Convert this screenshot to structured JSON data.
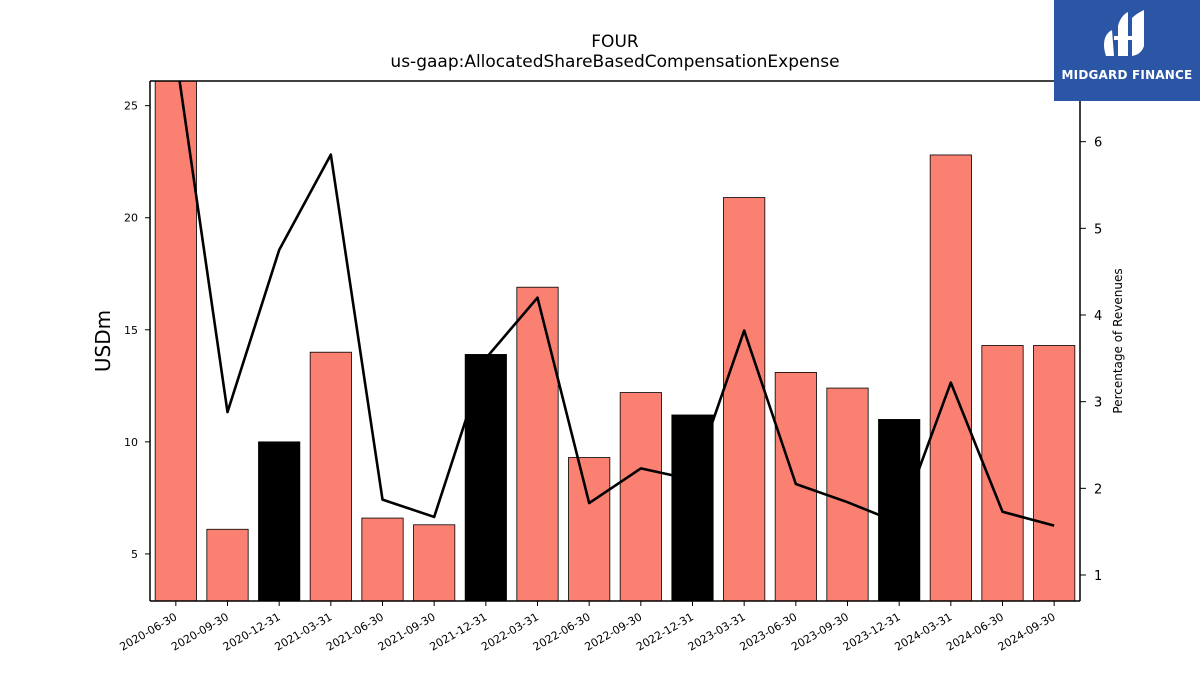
{
  "title": "FOUR",
  "subtitle": "us-gaap:AllocatedShareBasedCompensationExpense",
  "logo": {
    "text": "MIDGARD FINANCE",
    "icon": "midgard-logo-icon",
    "background": "#2b56a6"
  },
  "colors": {
    "annual_bar": "#000000",
    "quarter_bar": "#fa8072",
    "line": "#000000"
  },
  "chart_data": {
    "type": "bar",
    "categories": [
      "2020-06-30",
      "2020-09-30",
      "2020-12-31",
      "2021-03-31",
      "2021-06-30",
      "2021-09-30",
      "2021-12-31",
      "2022-03-31",
      "2022-06-30",
      "2022-09-30",
      "2022-12-31",
      "2023-03-31",
      "2023-06-30",
      "2023-09-30",
      "2023-12-31",
      "2024-03-31",
      "2024-06-30",
      "2024-09-30"
    ],
    "ylabel": "USDm",
    "y2label": "Percentage of Revenues",
    "ylim": [
      2.9,
      26.1
    ],
    "y2lim": [
      0.7,
      6.7
    ],
    "yticks": [
      5,
      10,
      15,
      20,
      25
    ],
    "y2ticks": [
      1,
      2,
      3,
      4,
      5,
      6
    ],
    "series": [
      {
        "values": [
          26.1,
          6.1,
          10.0,
          14.0,
          6.6,
          6.3,
          13.9,
          16.9,
          9.3,
          12.2,
          11.2,
          20.9,
          13.1,
          12.4,
          11.0,
          22.8,
          14.3,
          14.3
        ],
        "colors": [
          "#fa8072",
          "#fa8072",
          "#000000",
          "#fa8072",
          "#fa8072",
          "#fa8072",
          "#000000",
          "#fa8072",
          "#fa8072",
          "#fa8072",
          "#000000",
          "#fa8072",
          "#fa8072",
          "#fa8072",
          "#000000",
          "#fa8072",
          "#fa8072",
          "#fa8072"
        ]
      },
      {
        "type": "line",
        "axis": "right",
        "values": [
          7.0,
          2.88,
          4.75,
          5.85,
          1.87,
          1.67,
          3.5,
          4.2,
          1.83,
          2.23,
          2.1,
          3.82,
          2.05,
          1.84,
          1.6,
          3.22,
          1.73,
          1.57
        ]
      }
    ]
  }
}
